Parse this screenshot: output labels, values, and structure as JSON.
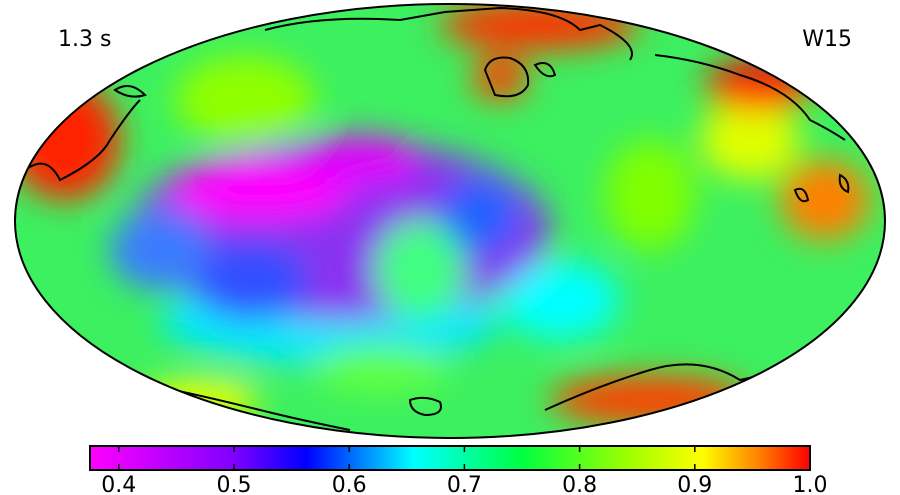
{
  "map": {
    "label_left": "1.3 s",
    "label_right": "W15",
    "colorbar": {
      "lim": [
        0.375,
        1.0
      ],
      "ticks": [
        0.4,
        0.5,
        0.6,
        0.7,
        0.8,
        0.9,
        {
          "value": 1,
          "label": "1.0"
        }
      ]
    }
  }
}
